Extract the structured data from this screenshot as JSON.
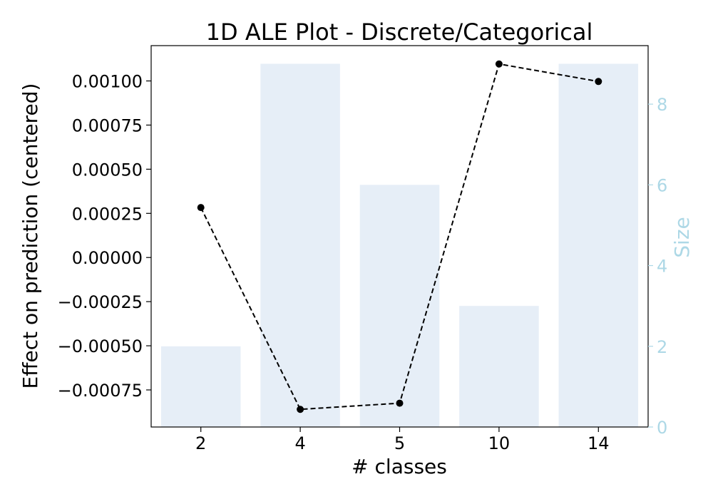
{
  "chart_data": {
    "type": "bar",
    "title": "1D ALE Plot - Discrete/Categorical",
    "xlabel": "# classes",
    "ylabel": "Effect on prediction (centered)",
    "ylabel_right": "Size",
    "categories": [
      "2",
      "4",
      "5",
      "10",
      "14"
    ],
    "series": [
      {
        "axis": "right",
        "kind": "bar",
        "values": [
          2,
          9,
          6,
          3,
          9
        ]
      },
      {
        "axis": "left",
        "kind": "line",
        "linestyle": "dashed",
        "marker": "circle",
        "values": [
          0.000283,
          -0.00086,
          -0.000825,
          0.001096,
          0.000997
        ]
      }
    ],
    "ylim": [
      -0.00096,
      0.0012
    ],
    "ylim_right": [
      0,
      9.45
    ],
    "yticks": [
      "0.00100",
      "0.00075",
      "0.00050",
      "0.00025",
      "0.00000",
      "−0.00025",
      "−0.00050",
      "−0.00075"
    ],
    "ytick_values": [
      0.001,
      0.00075,
      0.0005,
      0.00025,
      0.0,
      -0.00025,
      -0.0005,
      -0.00075
    ],
    "yticks_right": [
      "8",
      "6",
      "4",
      "2",
      "0"
    ],
    "ytick_right_values": [
      8,
      6,
      4,
      2,
      0
    ],
    "grid": false,
    "colors": {
      "bar": "#e6eef7",
      "line": "#000000",
      "right_axis": "#add8e6"
    }
  }
}
